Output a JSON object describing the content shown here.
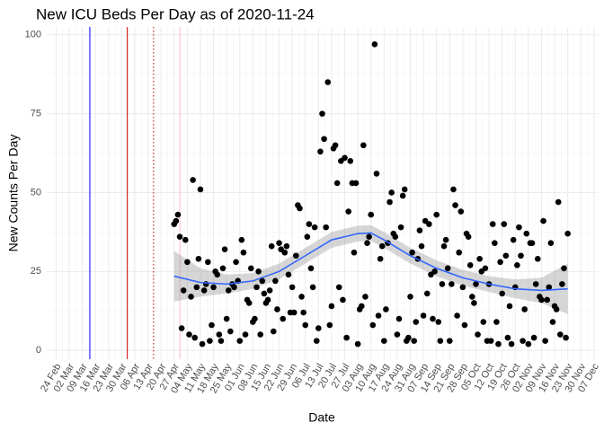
{
  "chart_data": {
    "type": "scatter",
    "title": "New ICU Beds Per Day as of 2020-11-24",
    "x_label": "Date",
    "y_label": "New Counts Per Day",
    "color": "#000000",
    "grid": true,
    "xlim": [
      "02-19",
      "12-09"
    ],
    "ylim": [
      -2.8,
      102.5
    ],
    "yticks": [
      0,
      25,
      50,
      75,
      100
    ],
    "xticks": [
      {
        "value": "02-24",
        "label": "24 Feb"
      },
      {
        "value": "03-02",
        "label": "02 Mar"
      },
      {
        "value": "03-09",
        "label": "09 Mar"
      },
      {
        "value": "03-16",
        "label": "16 Mar"
      },
      {
        "value": "03-23",
        "label": "23 Mar"
      },
      {
        "value": "03-30",
        "label": "30 Mar"
      },
      {
        "value": "04-06",
        "label": "06 Apr"
      },
      {
        "value": "04-13",
        "label": "13 Apr"
      },
      {
        "value": "04-20",
        "label": "20 Apr"
      },
      {
        "value": "04-27",
        "label": "27 Apr"
      },
      {
        "value": "05-04",
        "label": "04 May"
      },
      {
        "value": "05-11",
        "label": "11 May"
      },
      {
        "value": "05-18",
        "label": "18 May"
      },
      {
        "value": "05-25",
        "label": "25 May"
      },
      {
        "value": "06-01",
        "label": "01 Jun"
      },
      {
        "value": "06-08",
        "label": "08 Jun"
      },
      {
        "value": "06-15",
        "label": "15 Jun"
      },
      {
        "value": "06-22",
        "label": "22 Jun"
      },
      {
        "value": "06-29",
        "label": "29 Jun"
      },
      {
        "value": "07-06",
        "label": "06 Jul"
      },
      {
        "value": "07-13",
        "label": "13 Jul"
      },
      {
        "value": "07-20",
        "label": "20 Jul"
      },
      {
        "value": "07-27",
        "label": "27 Jul"
      },
      {
        "value": "08-03",
        "label": "03 Aug"
      },
      {
        "value": "08-10",
        "label": "10 Aug"
      },
      {
        "value": "08-17",
        "label": "17 Aug"
      },
      {
        "value": "08-24",
        "label": "24 Aug"
      },
      {
        "value": "08-31",
        "label": "31 Aug"
      },
      {
        "value": "09-07",
        "label": "07 Sep"
      },
      {
        "value": "09-14",
        "label": "14 Sep"
      },
      {
        "value": "09-21",
        "label": "21 Sep"
      },
      {
        "value": "09-28",
        "label": "28 Sep"
      },
      {
        "value": "10-05",
        "label": "05 Oct"
      },
      {
        "value": "10-12",
        "label": "12 Oct"
      },
      {
        "value": "10-19",
        "label": "19 Oct"
      },
      {
        "value": "10-26",
        "label": "26 Oct"
      },
      {
        "value": "11-02",
        "label": "02 Nov"
      },
      {
        "value": "11-09",
        "label": "09 Nov"
      },
      {
        "value": "11-16",
        "label": "16 Nov"
      },
      {
        "value": "11-23",
        "label": "23 Nov"
      },
      {
        "value": "11-30",
        "label": "30 Nov"
      },
      {
        "value": "12-07",
        "label": "07 Dec"
      }
    ],
    "vlines": [
      {
        "x": "03-13",
        "color": "#0000ff",
        "linetype": "solid"
      },
      {
        "x": "04-02",
        "color": "#cc0000",
        "linetype": "solid"
      },
      {
        "x": "04-16",
        "color": "#cc0000",
        "linetype": "dotted"
      },
      {
        "x": "04-30",
        "color": "#ffc0cb",
        "linetype": "solid"
      }
    ],
    "x": [
      "04-27",
      "04-28",
      "04-29",
      "04-30",
      "05-01",
      "05-02",
      "05-03",
      "05-04",
      "05-05",
      "05-06",
      "05-07",
      "05-08",
      "05-09",
      "05-10",
      "05-11",
      "05-12",
      "05-13",
      "05-14",
      "05-15",
      "05-16",
      "05-17",
      "05-18",
      "05-19",
      "05-20",
      "05-21",
      "05-22",
      "05-23",
      "05-24",
      "05-25",
      "05-26",
      "05-27",
      "05-28",
      "05-29",
      "05-30",
      "05-31",
      "06-01",
      "06-02",
      "06-03",
      "06-04",
      "06-05",
      "06-06",
      "06-07",
      "06-08",
      "06-09",
      "06-10",
      "06-11",
      "06-12",
      "06-13",
      "06-14",
      "06-15",
      "06-16",
      "06-17",
      "06-18",
      "06-19",
      "06-20",
      "06-21",
      "06-22",
      "06-23",
      "06-24",
      "06-25",
      "06-26",
      "06-27",
      "06-28",
      "06-29",
      "06-30",
      "07-01",
      "07-02",
      "07-03",
      "07-04",
      "07-05",
      "07-06",
      "07-07",
      "07-08",
      "07-09",
      "07-10",
      "07-11",
      "07-12",
      "07-13",
      "07-14",
      "07-15",
      "07-16",
      "07-17",
      "07-18",
      "07-19",
      "07-20",
      "07-21",
      "07-22",
      "07-23",
      "07-24",
      "07-25",
      "07-26",
      "07-27",
      "07-28",
      "07-29",
      "07-30",
      "07-31",
      "08-01",
      "08-02",
      "08-03",
      "08-04",
      "08-05",
      "08-06",
      "08-07",
      "08-08",
      "08-09",
      "08-10",
      "08-11",
      "08-12",
      "08-13",
      "08-14",
      "08-15",
      "08-16",
      "08-17",
      "08-18",
      "08-19",
      "08-20",
      "08-21",
      "08-22",
      "08-23",
      "08-24",
      "08-25",
      "08-26",
      "08-27",
      "08-28",
      "08-29",
      "08-30",
      "08-31",
      "09-01",
      "09-02",
      "09-03",
      "09-04",
      "09-05",
      "09-06",
      "09-07",
      "09-08",
      "09-09",
      "09-10",
      "09-11",
      "09-12",
      "09-13",
      "09-14",
      "09-15",
      "09-16",
      "09-17",
      "09-18",
      "09-19",
      "09-20",
      "09-21",
      "09-22",
      "09-23",
      "09-24",
      "09-25",
      "09-26",
      "09-27",
      "09-28",
      "09-29",
      "09-30",
      "10-01",
      "10-02",
      "10-03",
      "10-04",
      "10-05",
      "10-06",
      "10-07",
      "10-08",
      "10-09",
      "10-10",
      "10-11",
      "10-12",
      "10-13",
      "10-14",
      "10-15",
      "10-16",
      "10-17",
      "10-18",
      "10-19",
      "10-20",
      "10-21",
      "10-22",
      "10-23",
      "10-24",
      "10-25",
      "10-26",
      "10-27",
      "10-28",
      "10-29",
      "10-30",
      "10-31",
      "11-01",
      "11-02",
      "11-03",
      "11-04",
      "11-05",
      "11-06",
      "11-07",
      "11-08",
      "11-09",
      "11-10",
      "11-11",
      "11-12",
      "11-13",
      "11-14",
      "11-15",
      "11-16",
      "11-17",
      "11-18",
      "11-19",
      "11-20",
      "11-21",
      "11-22",
      "11-23"
    ],
    "values": [
      40,
      41,
      43,
      36,
      7,
      19,
      35,
      28,
      5,
      17,
      54,
      4,
      20,
      29,
      51,
      2,
      19,
      21,
      28,
      3,
      8,
      20,
      25,
      24,
      5,
      3,
      26,
      32,
      10,
      19,
      6,
      21,
      20,
      28,
      22,
      3,
      35,
      31,
      5,
      16,
      15,
      26,
      9,
      10,
      20,
      25,
      5,
      22,
      18,
      15,
      16,
      19,
      33,
      6,
      22,
      13,
      34,
      32,
      10,
      31,
      33,
      24,
      12,
      20,
      12,
      30,
      46,
      45,
      17,
      12,
      8,
      36,
      40,
      26,
      20,
      39,
      3,
      7,
      63,
      75,
      67,
      39,
      85,
      8,
      14,
      64,
      65,
      53,
      20,
      60,
      16,
      61,
      4,
      44,
      60,
      53,
      31,
      53,
      2,
      13,
      14,
      65,
      17,
      34,
      36,
      43,
      8,
      97,
      56,
      11,
      29,
      33,
      3,
      13,
      34,
      47,
      50,
      37,
      36,
      5,
      10,
      39,
      49,
      51,
      3,
      4,
      17,
      31,
      3,
      9,
      29,
      38,
      33,
      11,
      41,
      18,
      40,
      24,
      10,
      25,
      43,
      9,
      3,
      21,
      33,
      35,
      26,
      3,
      21,
      51,
      46,
      11,
      31,
      44,
      20,
      8,
      37,
      36,
      27,
      17,
      15,
      21,
      5,
      29,
      25,
      9,
      26,
      3,
      21,
      3,
      40,
      34,
      9,
      2,
      28,
      18,
      40,
      30,
      4,
      14,
      2,
      35,
      20,
      27,
      39,
      30,
      3,
      13,
      37,
      2,
      34,
      34,
      4,
      21,
      29,
      17,
      16,
      41,
      3,
      16,
      20,
      34,
      9,
      14,
      13,
      47,
      5,
      21,
      26,
      4,
      37
    ],
    "smooth": {
      "color": "#3366ff",
      "band_color": "#999999",
      "x": [
        "04-27",
        "05-11",
        "05-25",
        "06-08",
        "06-22",
        "07-06",
        "07-20",
        "08-03",
        "08-10",
        "08-17",
        "08-31",
        "09-14",
        "09-28",
        "10-12",
        "10-26",
        "11-09",
        "11-23"
      ],
      "values": [
        23.5,
        21.5,
        21,
        22,
        25,
        30,
        35,
        37,
        37.2,
        35,
        30,
        26,
        23,
        21,
        19.5,
        19,
        19.5
      ],
      "lower": [
        15.5,
        17,
        18,
        19.5,
        22.5,
        27.5,
        32.5,
        34.5,
        34.7,
        32.5,
        27.5,
        23.5,
        20.5,
        18.5,
        16.5,
        15,
        11.5
      ],
      "upper": [
        31.5,
        26,
        24,
        24.5,
        27.5,
        32.5,
        37.5,
        39.5,
        39.7,
        37.5,
        32.5,
        28.5,
        25.5,
        23.5,
        22.5,
        23,
        27.5
      ]
    }
  }
}
